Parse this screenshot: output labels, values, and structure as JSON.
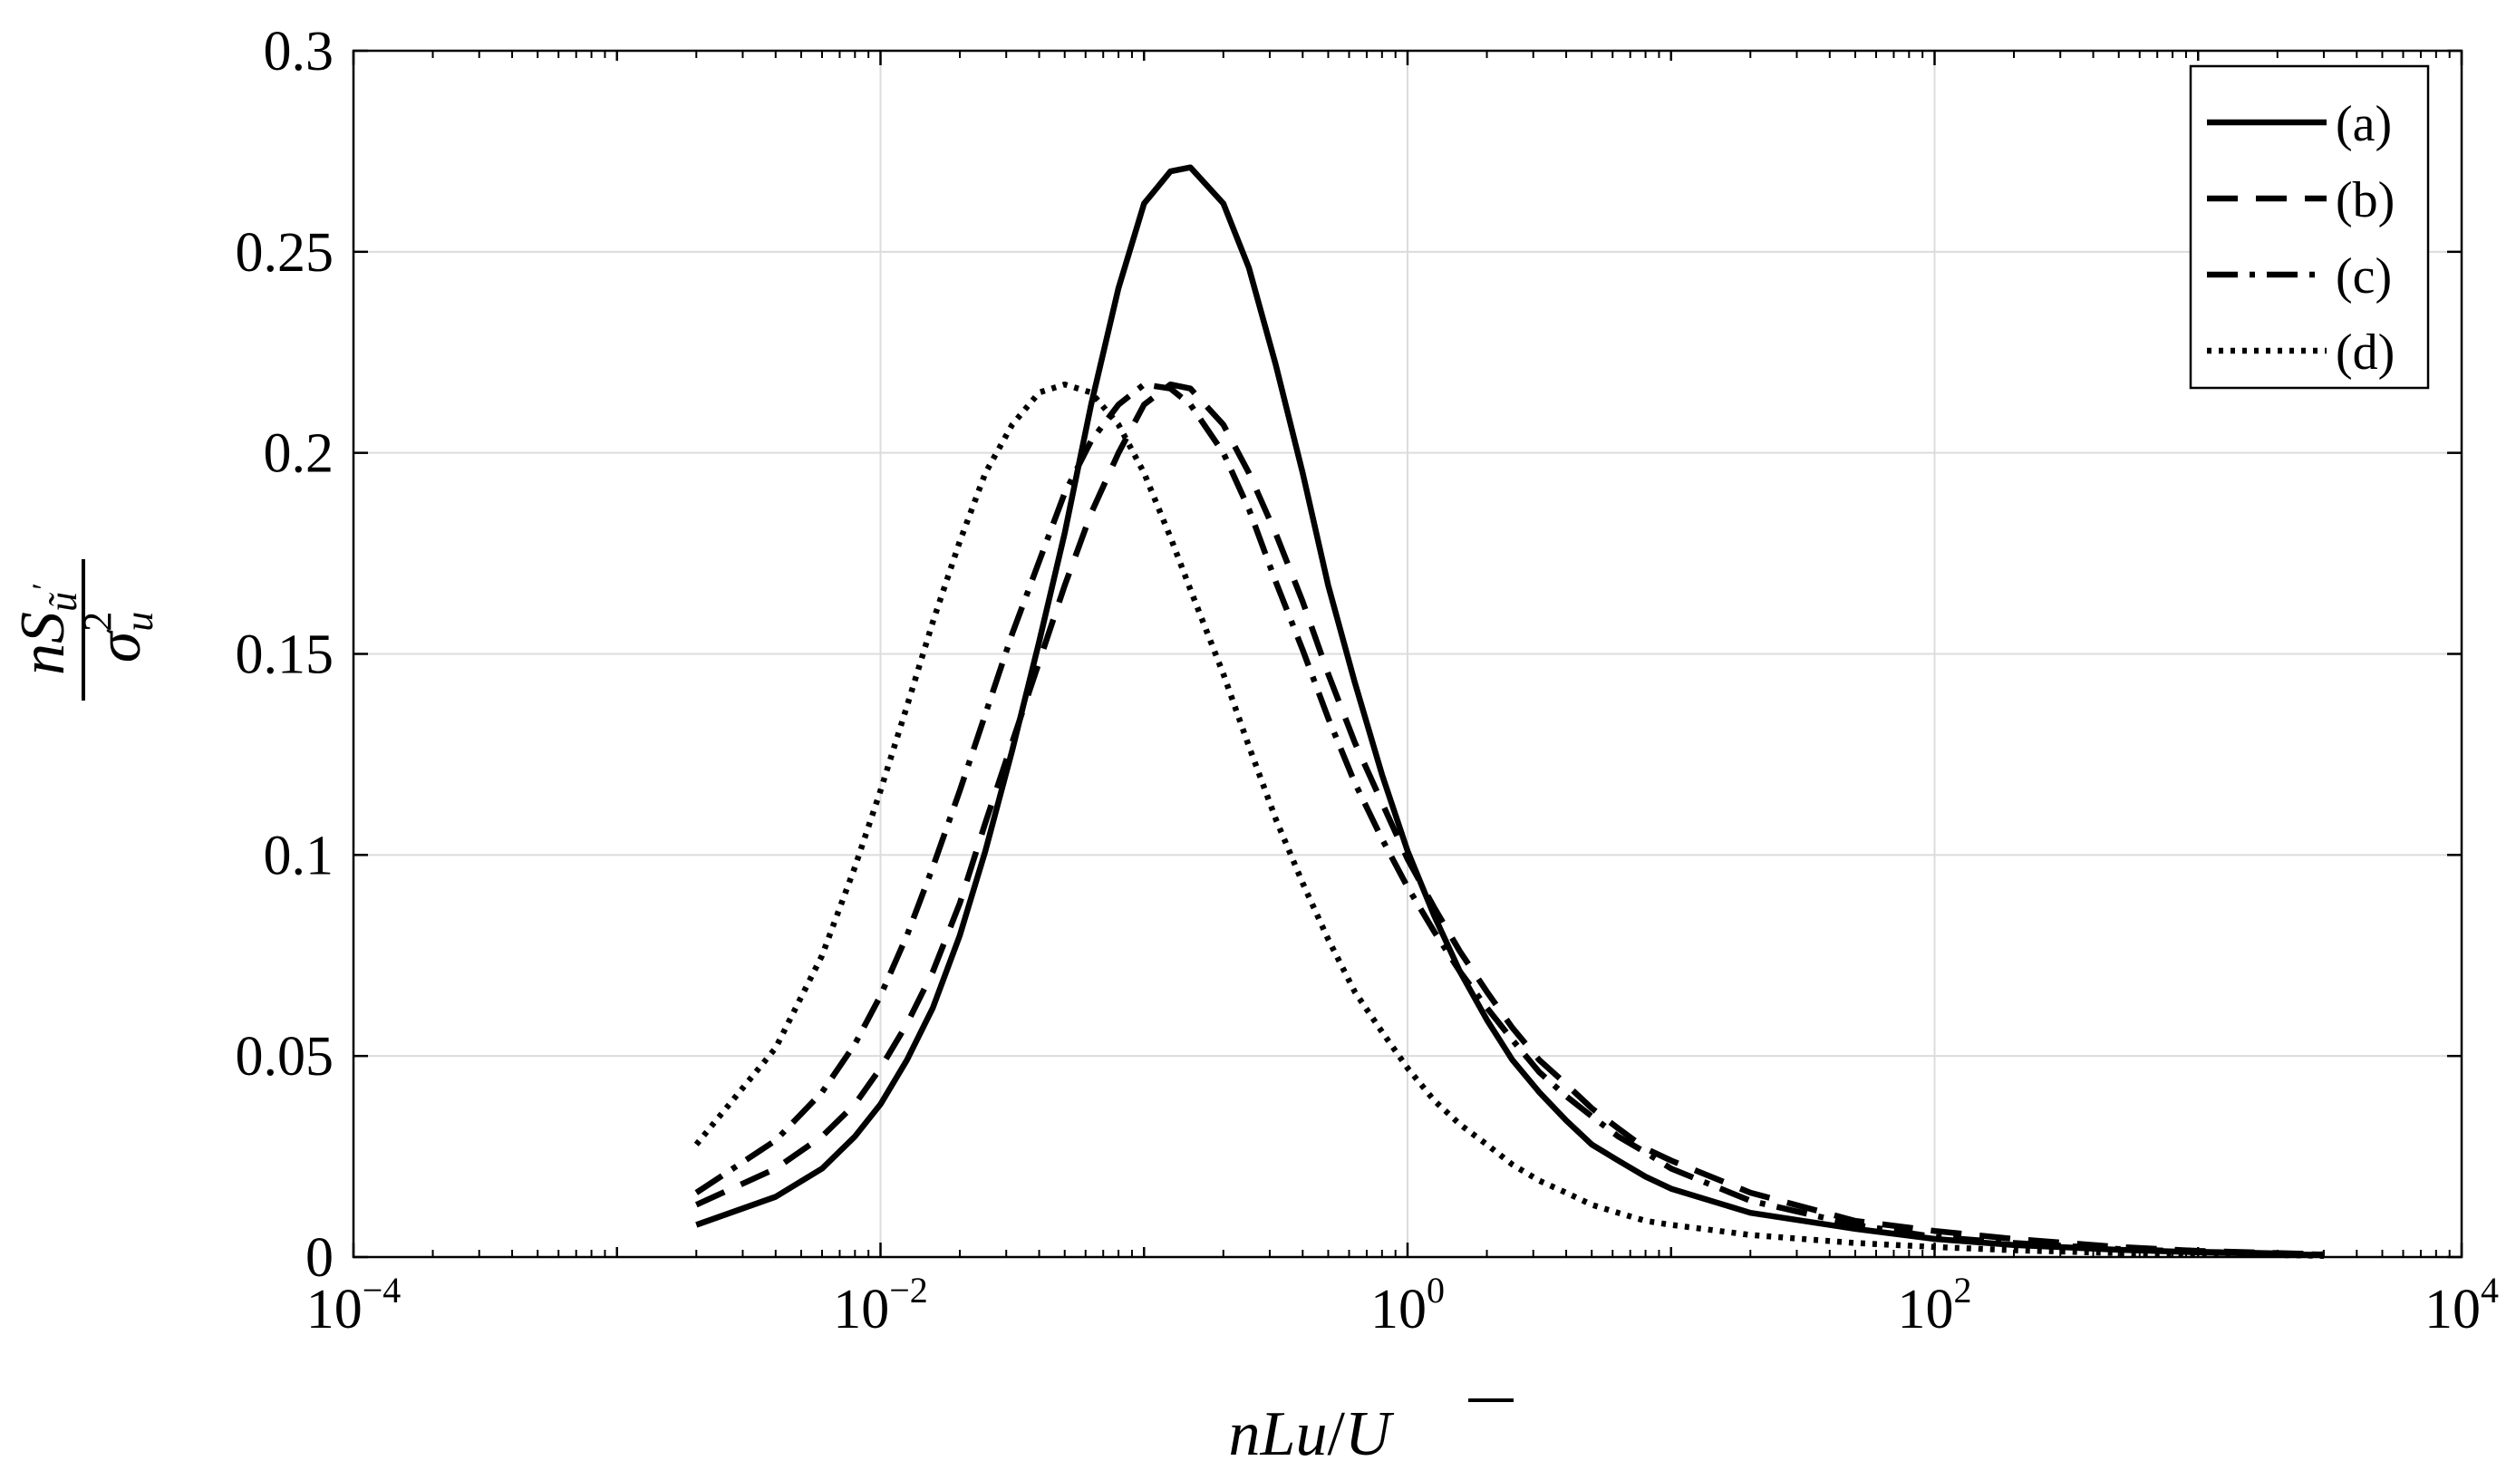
{
  "chart_data": {
    "type": "line",
    "xscale": "log",
    "xlim": [
      0.0001,
      10000
    ],
    "ylim": [
      0,
      0.3
    ],
    "grid": true,
    "legend_position": "top-right",
    "x_ticks": [
      {
        "base": "10",
        "exp": "−4"
      },
      {
        "base": "10",
        "exp": "−2"
      },
      {
        "base": "10",
        "exp": "0"
      },
      {
        "base": "10",
        "exp": "2"
      },
      {
        "base": "10",
        "exp": "4"
      }
    ],
    "y_ticks": [
      "0",
      "0.05",
      "0.1",
      "0.15",
      "0.2",
      "0.25",
      "0.3"
    ],
    "xlabel": {
      "n": "n",
      "L": "L",
      "u": "u",
      "slash": "/",
      "U": "U"
    },
    "ylabel": {
      "num_n": "n",
      "num_S": "S",
      "sub_u": "ũ",
      "prime": "′",
      "sigma": "σ",
      "sub": "u",
      "sup": "2"
    },
    "series": [
      {
        "name": "(a)",
        "style": "solid",
        "x": [
          0.002,
          0.004,
          0.006,
          0.008,
          0.01,
          0.0126,
          0.0158,
          0.02,
          0.025,
          0.0316,
          0.04,
          0.05,
          0.063,
          0.08,
          0.1,
          0.126,
          0.15,
          0.2,
          0.25,
          0.316,
          0.4,
          0.5,
          0.63,
          0.8,
          1.0,
          1.26,
          1.58,
          2.0,
          2.5,
          3.16,
          4.0,
          5.0,
          6.3,
          8.0,
          10,
          20,
          50,
          100,
          200,
          500,
          1000,
          2000,
          3000
        ],
        "y": [
          0.008,
          0.015,
          0.022,
          0.03,
          0.038,
          0.049,
          0.062,
          0.08,
          0.101,
          0.126,
          0.153,
          0.18,
          0.212,
          0.241,
          0.262,
          0.27,
          0.271,
          0.262,
          0.246,
          0.222,
          0.195,
          0.167,
          0.143,
          0.12,
          0.101,
          0.085,
          0.071,
          0.059,
          0.049,
          0.041,
          0.034,
          0.028,
          0.024,
          0.02,
          0.017,
          0.011,
          0.007,
          0.0045,
          0.003,
          0.0018,
          0.0012,
          0.0008,
          0.0005
        ]
      },
      {
        "name": "(b)",
        "style": "dashed",
        "x": [
          0.002,
          0.004,
          0.006,
          0.008,
          0.01,
          0.0126,
          0.0158,
          0.02,
          0.025,
          0.0316,
          0.04,
          0.05,
          0.063,
          0.08,
          0.1,
          0.126,
          0.15,
          0.2,
          0.25,
          0.316,
          0.4,
          0.5,
          0.63,
          0.8,
          1.0,
          1.26,
          1.58,
          2.0,
          2.5,
          3.16,
          4.0,
          5.0,
          6.3,
          8.0,
          10,
          20,
          50,
          100,
          200,
          500,
          1000,
          2000,
          3000
        ],
        "y": [
          0.013,
          0.022,
          0.03,
          0.038,
          0.047,
          0.058,
          0.071,
          0.088,
          0.108,
          0.128,
          0.148,
          0.167,
          0.185,
          0.2,
          0.212,
          0.217,
          0.216,
          0.207,
          0.195,
          0.18,
          0.163,
          0.145,
          0.128,
          0.113,
          0.099,
          0.087,
          0.076,
          0.066,
          0.057,
          0.049,
          0.043,
          0.037,
          0.032,
          0.027,
          0.024,
          0.016,
          0.009,
          0.0065,
          0.0045,
          0.0025,
          0.0015,
          0.001,
          0.0007
        ]
      },
      {
        "name": "(c)",
        "style": "dashdot",
        "x": [
          0.002,
          0.004,
          0.006,
          0.008,
          0.01,
          0.0126,
          0.0158,
          0.02,
          0.025,
          0.0316,
          0.04,
          0.05,
          0.063,
          0.08,
          0.1,
          0.126,
          0.15,
          0.2,
          0.25,
          0.316,
          0.4,
          0.5,
          0.63,
          0.8,
          1.0,
          1.26,
          1.58,
          2.0,
          2.5,
          3.16,
          4.0,
          5.0,
          6.3,
          8.0,
          10,
          20,
          50,
          100,
          200,
          500,
          1000,
          2000,
          3000
        ],
        "y": [
          0.016,
          0.029,
          0.041,
          0.053,
          0.065,
          0.08,
          0.097,
          0.116,
          0.135,
          0.155,
          0.173,
          0.19,
          0.203,
          0.212,
          0.217,
          0.216,
          0.212,
          0.2,
          0.186,
          0.168,
          0.151,
          0.134,
          0.118,
          0.104,
          0.092,
          0.081,
          0.071,
          0.062,
          0.054,
          0.046,
          0.04,
          0.035,
          0.03,
          0.026,
          0.022,
          0.014,
          0.008,
          0.005,
          0.0035,
          0.002,
          0.0013,
          0.0009,
          0.0006
        ]
      },
      {
        "name": "(d)",
        "style": "dotted",
        "x": [
          0.002,
          0.004,
          0.006,
          0.008,
          0.01,
          0.0126,
          0.0158,
          0.02,
          0.025,
          0.0316,
          0.04,
          0.05,
          0.063,
          0.08,
          0.1,
          0.126,
          0.15,
          0.2,
          0.25,
          0.316,
          0.4,
          0.5,
          0.63,
          0.8,
          1.0,
          1.26,
          1.58,
          2.0,
          2.5,
          3.16,
          4.0,
          5.0,
          6.3,
          8.0,
          10,
          20,
          50,
          100,
          200,
          500,
          1000,
          2000,
          3000
        ],
        "y": [
          0.028,
          0.052,
          0.075,
          0.097,
          0.116,
          0.137,
          0.158,
          0.178,
          0.195,
          0.207,
          0.215,
          0.217,
          0.215,
          0.207,
          0.195,
          0.179,
          0.166,
          0.145,
          0.127,
          0.109,
          0.093,
          0.079,
          0.066,
          0.056,
          0.047,
          0.039,
          0.033,
          0.028,
          0.023,
          0.019,
          0.016,
          0.013,
          0.011,
          0.009,
          0.008,
          0.0055,
          0.0035,
          0.0025,
          0.0017,
          0.001,
          0.0007,
          0.0005,
          0.0003
        ]
      }
    ]
  }
}
